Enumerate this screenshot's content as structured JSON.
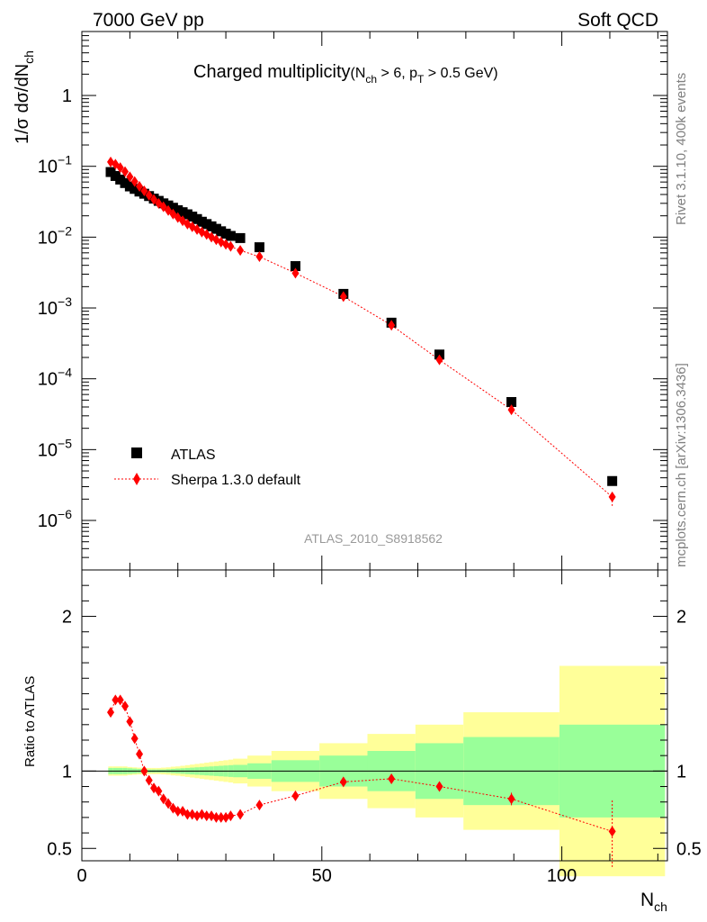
{
  "header": {
    "left": "7000 GeV pp",
    "right": "Soft QCD"
  },
  "side": {
    "rivet": "Rivet 3.1.10,  400k events",
    "mcplots": "mcplots.cern.ch [arXiv:1306.3436]"
  },
  "analysis_id": "ATLAS_2010_S8918562",
  "title": {
    "main": "Charged multiplicity",
    "cuts": "(N",
    "cuts_sub1": "ch",
    "cuts_mid": " > 6, p",
    "cuts_sub2": "T",
    "cuts_end": " > 0.5 GeV)"
  },
  "ylabel": {
    "pre": "1/σ dσ/dN",
    "sub": "ch"
  },
  "xlabel": {
    "main": "N",
    "sub": "ch"
  },
  "ratio_ylabel": "Ratio to ATLAS",
  "legend": {
    "data": "ATLAS",
    "mc": "Sherpa 1.3.0 default"
  },
  "colors": {
    "data": "#000000",
    "mc": "#ff0000",
    "band_inner": "#99ff99",
    "band_outer": "#ffff99",
    "side_text": "#808080"
  },
  "chart_data": [
    {
      "type": "scatter",
      "panel": "main",
      "yscale": "log",
      "xlim": [
        0,
        122
      ],
      "ylim": [
        2e-07,
        8
      ],
      "x_ticks": [
        0,
        50,
        100
      ],
      "y_ticks": [
        1e-06,
        1e-05,
        0.0001,
        0.001,
        0.01,
        0.1,
        1
      ],
      "y_tick_labels": [
        {
          "base": "10",
          "exp": "−6"
        },
        {
          "base": "10",
          "exp": "−5"
        },
        {
          "base": "10",
          "exp": "−4"
        },
        {
          "base": "10",
          "exp": "−3"
        },
        {
          "base": "10",
          "exp": "−2"
        },
        {
          "base": "10",
          "exp": "−1"
        },
        {
          "base": "1",
          "exp": ""
        }
      ],
      "series": [
        {
          "name": "ATLAS",
          "x": [
            6,
            7,
            8,
            9,
            10,
            11,
            12,
            13,
            14,
            15,
            16,
            17,
            18,
            19,
            20,
            21,
            22,
            23,
            24,
            25,
            26,
            27,
            28,
            29,
            30,
            31,
            33,
            37,
            44.5,
            54.5,
            64.5,
            74.5,
            89.5,
            110.5
          ],
          "values": [
            0.083,
            0.073,
            0.065,
            0.058,
            0.052,
            0.048,
            0.044,
            0.041,
            0.038,
            0.035,
            0.0325,
            0.03,
            0.028,
            0.026,
            0.024,
            0.0225,
            0.021,
            0.0195,
            0.018,
            0.0165,
            0.0153,
            0.0142,
            0.0131,
            0.0121,
            0.0112,
            0.0104,
            0.0097,
            0.0072,
            0.0039,
            0.00158,
            0.00062,
            0.00022,
            4.7e-05,
            3.6e-06
          ]
        },
        {
          "name": "Sherpa 1.3.0 default",
          "x": [
            6,
            7,
            8,
            9,
            10,
            11,
            12,
            13,
            14,
            15,
            16,
            17,
            18,
            19,
            20,
            21,
            22,
            23,
            24,
            25,
            26,
            27,
            28,
            29,
            30,
            31,
            33,
            37,
            44.5,
            54.5,
            64.5,
            74.5,
            89.5,
            110.5
          ],
          "values": [
            0.115,
            0.107,
            0.096,
            0.084,
            0.071,
            0.061,
            0.052,
            0.045,
            0.039,
            0.034,
            0.03,
            0.0268,
            0.0238,
            0.0212,
            0.0189,
            0.017,
            0.0153,
            0.014,
            0.0128,
            0.0118,
            0.0109,
            0.01,
            0.0092,
            0.0085,
            0.0079,
            0.0074,
            0.0065,
            0.0053,
            0.0031,
            0.00145,
            0.00057,
            0.000185,
            3.65e-05,
            2.15e-06
          ],
          "error_low": [
            2.15e-06
          ],
          "error_high": [
            2.5e-06
          ]
        }
      ]
    },
    {
      "type": "scatter",
      "panel": "ratio",
      "xlim": [
        0,
        122
      ],
      "ylim": [
        0.42,
        2.3
      ],
      "y_ticks": [
        0.5,
        1,
        2
      ],
      "y_tick_labels": [
        "0.5",
        "1",
        "2"
      ],
      "x_tick_labels": [
        "0",
        "50",
        "100"
      ],
      "bands": {
        "edges": [
          5.5,
          6.5,
          7.5,
          8.5,
          9.5,
          10.5,
          11.5,
          12.5,
          13.5,
          14.5,
          15.5,
          16.5,
          17.5,
          18.5,
          19.5,
          20.5,
          21.5,
          22.5,
          23.5,
          24.5,
          25.5,
          26.5,
          27.5,
          28.5,
          29.5,
          30.5,
          31.5,
          34.5,
          39.5,
          49.5,
          59.5,
          69.5,
          79.5,
          99.5,
          121.5
        ],
        "inner_half_width": [
          0.02,
          0.02,
          0.02,
          0.02,
          0.018,
          0.016,
          0.014,
          0.012,
          0.01,
          0.01,
          0.01,
          0.01,
          0.012,
          0.014,
          0.016,
          0.018,
          0.02,
          0.022,
          0.024,
          0.026,
          0.028,
          0.03,
          0.032,
          0.034,
          0.036,
          0.038,
          0.04,
          0.05,
          0.07,
          0.1,
          0.13,
          0.18,
          0.22,
          0.3
        ],
        "outer_half_width": [
          0.03,
          0.03,
          0.03,
          0.03,
          0.026,
          0.024,
          0.022,
          0.02,
          0.02,
          0.02,
          0.02,
          0.022,
          0.024,
          0.028,
          0.03,
          0.034,
          0.038,
          0.042,
          0.046,
          0.05,
          0.054,
          0.058,
          0.062,
          0.066,
          0.07,
          0.074,
          0.08,
          0.1,
          0.13,
          0.18,
          0.24,
          0.3,
          0.38,
          0.68
        ]
      },
      "reference": 1,
      "series": [
        {
          "name": "Sherpa 1.3.0 default / ATLAS",
          "x": [
            6,
            7,
            8,
            9,
            10,
            11,
            12,
            13,
            14,
            15,
            16,
            17,
            18,
            19,
            20,
            21,
            22,
            23,
            24,
            25,
            26,
            27,
            28,
            29,
            30,
            31,
            33,
            37,
            44.5,
            54.5,
            64.5,
            74.5,
            89.5,
            110.5
          ],
          "values": [
            1.38,
            1.46,
            1.46,
            1.42,
            1.32,
            1.21,
            1.11,
            1.0,
            0.94,
            0.89,
            0.87,
            0.82,
            0.79,
            0.76,
            0.74,
            0.74,
            0.72,
            0.72,
            0.71,
            0.72,
            0.71,
            0.71,
            0.7,
            0.7,
            0.7,
            0.71,
            0.72,
            0.78,
            0.84,
            0.93,
            0.95,
            0.9,
            0.82,
            0.61
          ],
          "err_low": [
            0,
            0,
            0,
            0,
            0,
            0,
            0,
            0,
            0,
            0,
            0,
            0,
            0,
            0,
            0,
            0,
            0,
            0,
            0,
            0,
            0,
            0,
            0,
            0,
            0,
            0,
            0,
            0,
            0,
            0.01,
            0.01,
            0.02,
            0.05,
            0.23
          ],
          "err_high": [
            0,
            0,
            0,
            0,
            0,
            0,
            0,
            0,
            0,
            0,
            0,
            0,
            0,
            0,
            0,
            0,
            0,
            0,
            0,
            0,
            0,
            0,
            0,
            0,
            0,
            0,
            0,
            0,
            0,
            0.01,
            0.01,
            0.02,
            0.04,
            0.2
          ]
        }
      ]
    }
  ]
}
